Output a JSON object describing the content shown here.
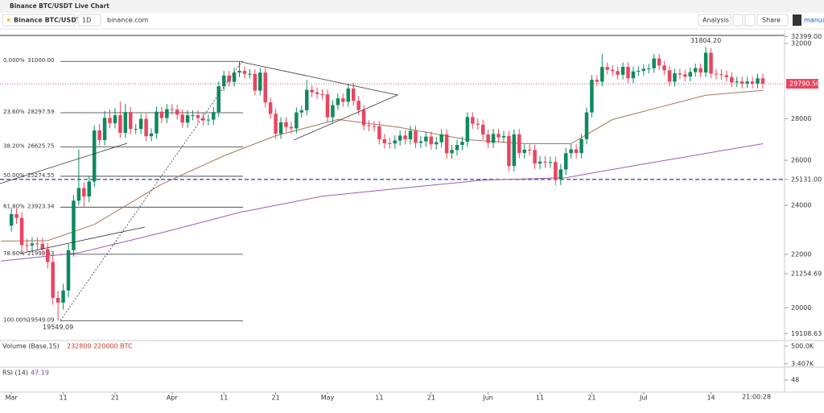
{
  "header": {
    "title": "Binance BTC/USDT Live Chart",
    "symbol": "Binance BTC/USDT",
    "interval": "1D",
    "link": "binance.com",
    "analysis": "Analysis",
    "share": "Share",
    "mode": "manual"
  },
  "chart_data": {
    "type": "candlestick",
    "log_scale": true,
    "up_color": "#0f8a5c",
    "down_color": "#e8465f",
    "open": [
      23150,
      23630,
      23470,
      22360,
      22350,
      22430,
      22410,
      22200,
      21700,
      20360,
      20190,
      20630,
      22160,
      24200,
      24750,
      24380,
      25040,
      27420,
      26950,
      28040,
      27770,
      28170,
      27300,
      28330,
      27490,
      27490,
      27990,
      27140,
      27270,
      28350,
      28030,
      28480,
      28450,
      28200,
      27800,
      28170,
      28170,
      28030,
      27910,
      27950,
      28330,
      29660,
      30230,
      29890,
      30390,
      30480,
      30320,
      30320,
      29430,
      30390,
      28820,
      28240,
      27260,
      27820,
      27590,
      27520,
      28310,
      28420,
      29470,
      29340,
      29250,
      29230,
      28070,
      28680,
      29030,
      28850,
      29540,
      28900,
      28430,
      27670,
      27630,
      27620,
      26990,
      26800,
      26790,
      26930,
      27170,
      26990,
      27400,
      26820,
      26890,
      27120,
      26750,
      26850,
      27230,
      26330,
      26480,
      26720,
      26870,
      28080,
      27750,
      27700,
      27220,
      26820,
      27250,
      27080,
      27150,
      25740,
      27230,
      26340,
      26500,
      26480,
      25850,
      25940,
      25900,
      25920,
      25130,
      25580,
      26330,
      26510,
      26340,
      27000,
      28310,
      30000,
      29900,
      30690,
      30540,
      30470,
      30270,
      30700,
      30080,
      30450,
      30480,
      30590,
      30620,
      31160,
      30770,
      30510,
      29900,
      30350,
      30290,
      30170,
      30420,
      30630,
      30390,
      31480,
      30330,
      30300,
      30250,
      30150,
      29860,
      29910,
      29800,
      29910,
      29800,
      30080
    ],
    "high": [
      23880,
      23880,
      23720,
      22610,
      22680,
      22680,
      22660,
      22450,
      21950,
      20610,
      20880,
      22410,
      24450,
      26500,
      25000,
      25290,
      27670,
      27750,
      28390,
      28470,
      28530,
      28850,
      28750,
      28580,
      27740,
      28240,
      28240,
      27520,
      28600,
      28600,
      28730,
      28730,
      28700,
      28450,
      28420,
      28420,
      28420,
      28280,
      28200,
      28580,
      29910,
      30480,
      30480,
      30640,
      31000,
      30730,
      30570,
      30570,
      30640,
      30640,
      29070,
      28490,
      28070,
      28070,
      27840,
      28560,
      28670,
      30000,
      29720,
      29590,
      29500,
      29480,
      28930,
      29280,
      29280,
      29790,
      29840,
      29150,
      28680,
      27920,
      27880,
      27870,
      27240,
      27050,
      27180,
      27420,
      27420,
      27650,
      27650,
      27140,
      27370,
      27370,
      27100,
      27480,
      27480,
      26730,
      26970,
      27120,
      28330,
      28330,
      28000,
      27950,
      27470,
      27500,
      27500,
      27400,
      27400,
      27480,
      27480,
      26750,
      26750,
      26730,
      26190,
      26190,
      26170,
      26170,
      25830,
      26580,
      26760,
      26760,
      27250,
      28560,
      30250,
      30250,
      31400,
      30940,
      30790,
      30720,
      30950,
      30950,
      30700,
      30730,
      30840,
      30870,
      31410,
      31410,
      31020,
      30760,
      30600,
      30600,
      30540,
      30670,
      30880,
      30880,
      31804.2,
      31730,
      30580,
      30550,
      30500,
      30400,
      30160,
      30160,
      30160,
      30160,
      30330,
      30330
    ],
    "low": [
      22900,
      23220,
      22110,
      22100,
      22100,
      22160,
      21950,
      21450,
      20110,
      19549.09,
      19940,
      20380,
      21910,
      24000,
      23950,
      24130,
      24790,
      26700,
      26700,
      27520,
      27520,
      27050,
      27050,
      27240,
      27240,
      27240,
      26890,
      26890,
      27020,
      27780,
      27780,
      28200,
      27950,
      27550,
      27550,
      27920,
      27780,
      27660,
      27660,
      27700,
      28080,
      29410,
      29640,
      29640,
      30140,
      30070,
      30070,
      29180,
      29180,
      28570,
      27990,
      27010,
      27010,
      27340,
      27270,
      27270,
      28060,
      28170,
      29090,
      29000,
      28980,
      27820,
      27820,
      28430,
      28600,
      28600,
      28650,
      28180,
      27420,
      27380,
      27370,
      26740,
      26550,
      26540,
      26540,
      26680,
      26740,
      26740,
      26570,
      26570,
      26640,
      26500,
      26500,
      26600,
      26080,
      26080,
      26230,
      26470,
      26620,
      27500,
      27450,
      26970,
      26570,
      26570,
      26830,
      26830,
      25490,
      25490,
      26090,
      26090,
      26230,
      25600,
      25600,
      25650,
      25650,
      24880,
      24880,
      25330,
      26080,
      26090,
      26090,
      26750,
      28060,
      29650,
      29650,
      30290,
      30220,
      30020,
      30020,
      29830,
      29830,
      30200,
      30230,
      30340,
      30370,
      30520,
      30260,
      29650,
      29650,
      30040,
      29920,
      29920,
      30170,
      30140,
      30140,
      30080,
      30050,
      30000,
      29900,
      29610,
      29610,
      29550,
      29550,
      29550,
      29550,
      29540
    ],
    "close": [
      23630,
      23470,
      22360,
      22350,
      22430,
      22410,
      22200,
      21700,
      20360,
      20190,
      20630,
      22160,
      24200,
      24750,
      24380,
      25040,
      27420,
      26950,
      28040,
      27770,
      28170,
      27300,
      28330,
      27490,
      27490,
      27990,
      27140,
      27270,
      28350,
      28030,
      28480,
      28450,
      28200,
      27800,
      28170,
      28170,
      28030,
      27910,
      27950,
      28330,
      29660,
      30230,
      29890,
      30390,
      30480,
      30320,
      30320,
      29430,
      30390,
      28820,
      28240,
      27260,
      27820,
      27590,
      27520,
      28310,
      28420,
      29470,
      29340,
      29250,
      29230,
      28070,
      28680,
      29030,
      28850,
      29540,
      28900,
      28430,
      27670,
      27630,
      27620,
      26990,
      26800,
      26790,
      26930,
      27170,
      26990,
      27400,
      26820,
      26890,
      27120,
      26750,
      26850,
      27230,
      26330,
      26480,
      26720,
      26870,
      28080,
      27750,
      27700,
      27220,
      26820,
      27250,
      27080,
      27150,
      25740,
      27230,
      26340,
      26500,
      26480,
      25850,
      25940,
      25900,
      25920,
      25130,
      25580,
      26330,
      26510,
      26340,
      27000,
      28310,
      30000,
      29900,
      30690,
      30540,
      30470,
      30270,
      30700,
      30080,
      30450,
      30480,
      30590,
      30620,
      31160,
      30770,
      30510,
      29900,
      30350,
      30290,
      30170,
      30420,
      30630,
      30390,
      31480,
      30330,
      30300,
      30250,
      30150,
      29860,
      29910,
      29800,
      29910,
      29800,
      30080,
      29790.5
    ],
    "ma_lines": [
      {
        "color": "#a8755a",
        "x": [
          -2,
          7,
          16,
          29,
          41,
          51,
          63,
          75,
          88,
          99,
          108,
          116,
          125,
          134,
          145
        ],
        "values": [
          22520,
          22540,
          23200,
          24920,
          26210,
          27160,
          27960,
          27560,
          26970,
          26780,
          26780,
          27960,
          28570,
          29190,
          29440
        ]
      },
      {
        "color": "#9a5bb5",
        "x": [
          -2,
          13,
          29,
          44,
          60,
          75,
          91,
          107,
          122,
          145
        ],
        "values": [
          21740,
          22060,
          22860,
          23700,
          24390,
          24740,
          25100,
          25210,
          25830,
          26780
        ]
      }
    ],
    "xlim": [
      -2.2,
      149.2
    ],
    "ylim": [
      18900,
      32650
    ],
    "xticks": [
      {
        "value": 0,
        "label": "Mar"
      },
      {
        "value": 10,
        "label": "11"
      },
      {
        "value": 20,
        "label": "21"
      },
      {
        "value": 31,
        "label": "Apr"
      },
      {
        "value": 41,
        "label": "11"
      },
      {
        "value": 51,
        "label": "21"
      },
      {
        "value": 61,
        "label": "May"
      },
      {
        "value": 71,
        "label": "11"
      },
      {
        "value": 81,
        "label": "21"
      },
      {
        "value": 92,
        "label": "Jun"
      },
      {
        "value": 102,
        "label": "11"
      },
      {
        "value": 112,
        "label": "21"
      },
      {
        "value": 122,
        "label": "Jul"
      },
      {
        "value": 135,
        "label": "14"
      }
    ],
    "yticks": [
      32000,
      28000,
      26000,
      24000,
      22000,
      20000
    ],
    "price_markers": [
      {
        "value": 32399,
        "label": "32399.00"
      },
      {
        "value": 25131,
        "label": "25131.00"
      },
      {
        "value": 21254.69,
        "label": "21254.69"
      },
      {
        "value": 19108.63,
        "label": "19108.63"
      }
    ],
    "last_price": {
      "value": 29790.5,
      "label": "29790.50"
    },
    "support_line": 25131,
    "high_label": "31804.20",
    "low_label": "19549.09",
    "countdown": "21:00:28",
    "fib_levels": [
      {
        "ratio": "0.000%",
        "price": {
          "value": 31000,
          "label": "31000.00"
        }
      },
      {
        "ratio": "23.60%",
        "price": {
          "value": 28297.59,
          "label": "28297.59"
        }
      },
      {
        "ratio": "38.20%",
        "price": {
          "value": 26625.75,
          "label": "26625.75"
        }
      },
      {
        "ratio": "50.00%",
        "price": {
          "value": 25274.55,
          "label": "25274.55"
        }
      },
      {
        "ratio": "61.80%",
        "price": {
          "value": 23923.34,
          "label": "23923.34"
        }
      },
      {
        "ratio": "78.60%",
        "price": {
          "value": 21999.53,
          "label": "21999.53"
        }
      },
      {
        "ratio": "100.00%",
        "price": {
          "value": 19549.09,
          "label": "19549.09"
        }
      }
    ],
    "volume_label": "Volume (Base,15)",
    "volume_values": "232800 220000 BTC",
    "volume_ticks": [
      {
        "value": 500000,
        "label": "500.0K"
      },
      {
        "value": 3407,
        "label": "3.407K"
      }
    ],
    "rsi_label": "RSI (14)",
    "rsi_value": 47.19,
    "rsi_ticks": [
      48
    ]
  }
}
